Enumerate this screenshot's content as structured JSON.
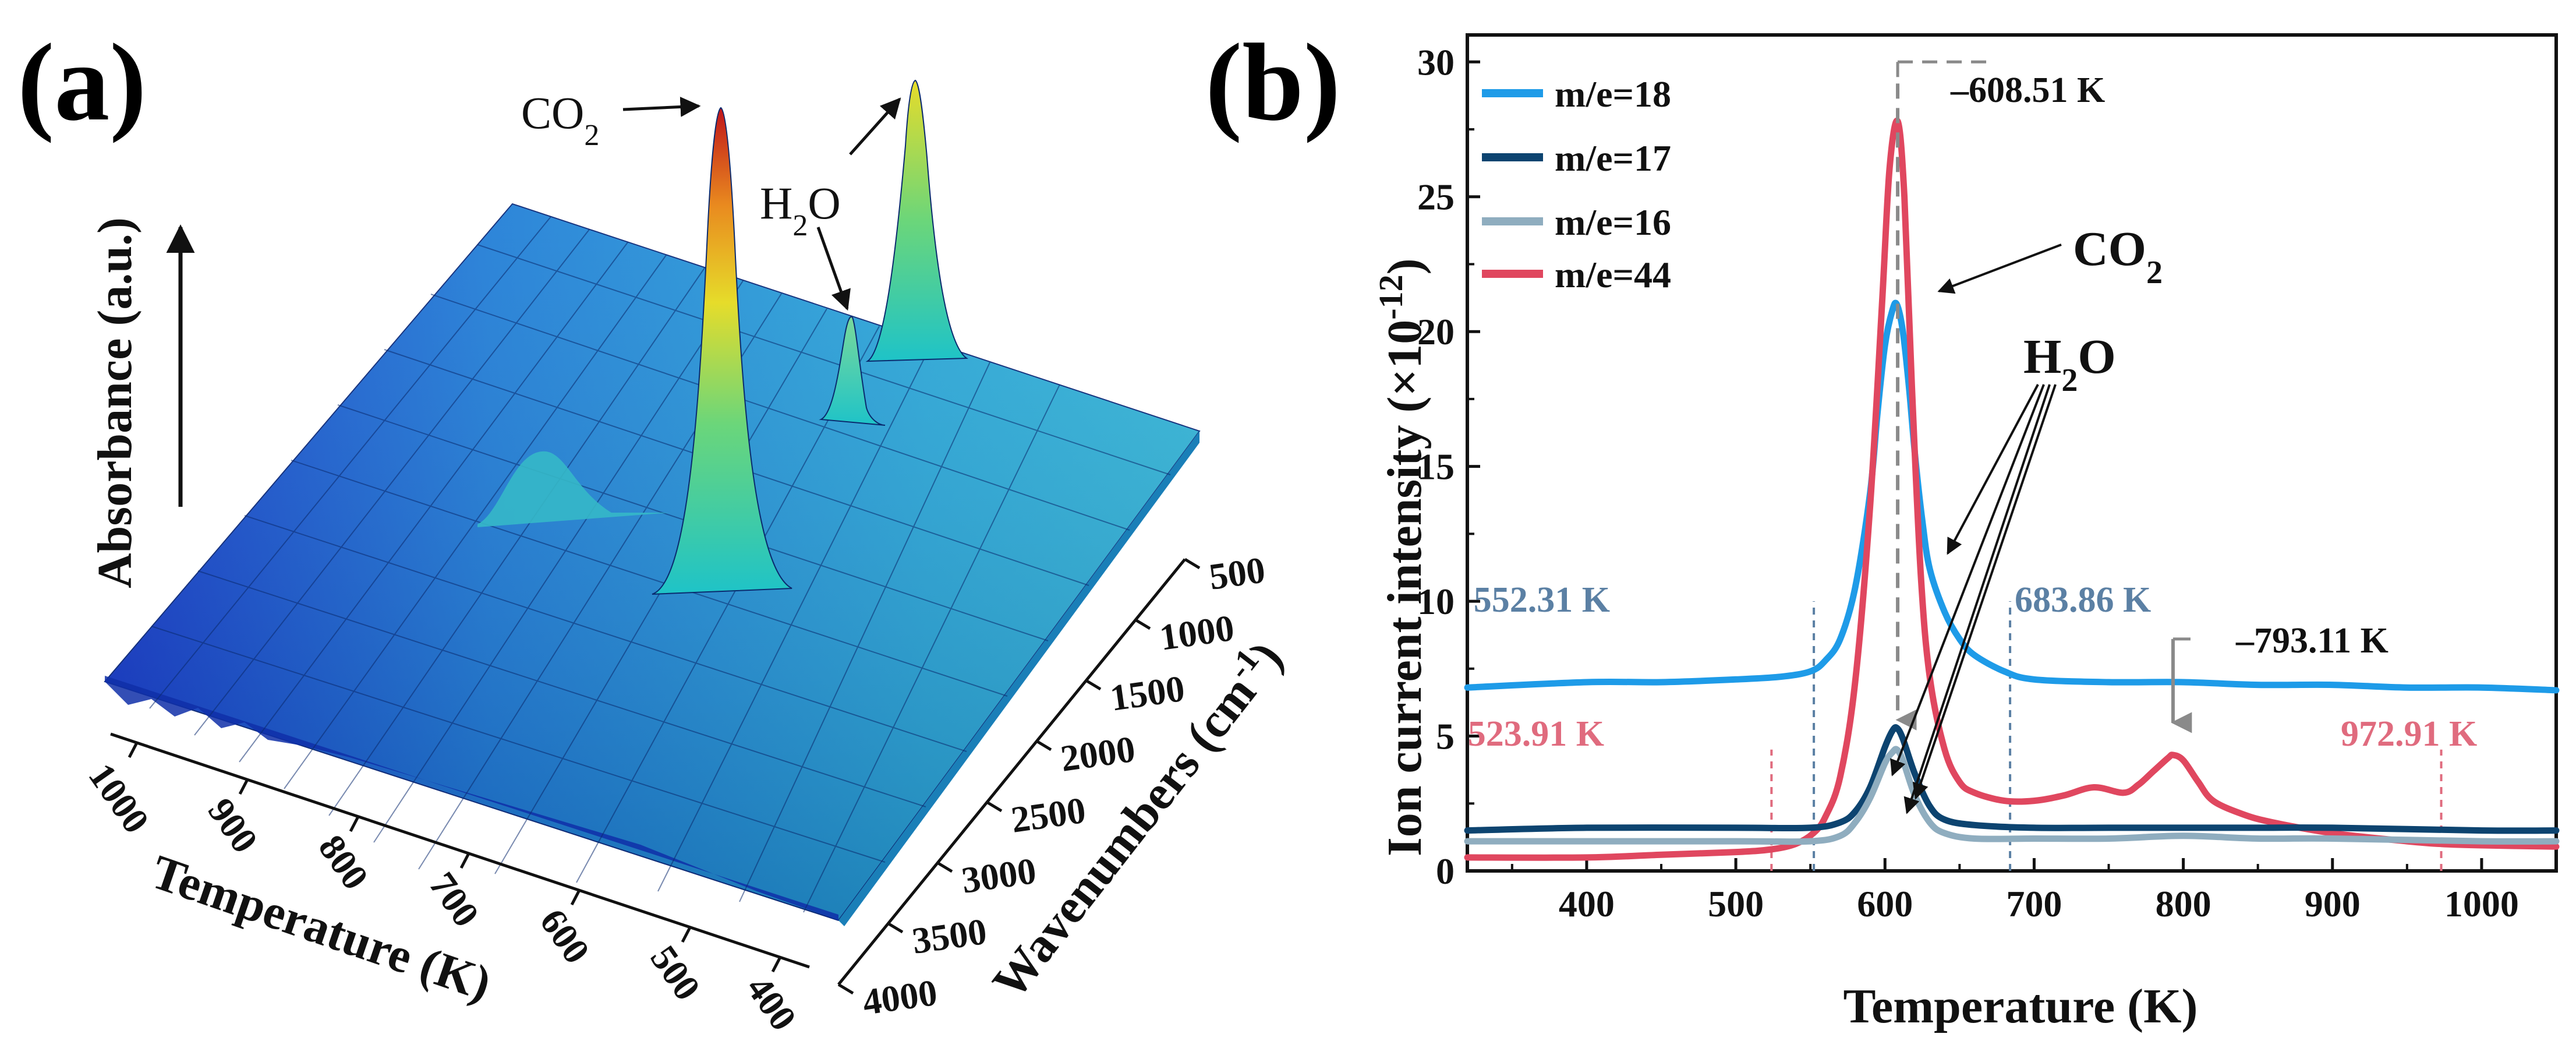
{
  "colors": {
    "m18": "#1e9be8",
    "m17": "#0d4470",
    "m16": "#8fadbf",
    "m44": "#e0475f",
    "pink_label": "#e06b7e",
    "blue_label": "#5b80a4",
    "axis": "#111111",
    "peak_marker": "#8a8a8a"
  },
  "panel_a": {
    "label": "(a)",
    "description_type": "3d-surface",
    "z_label": "Absorbance (a.u.)",
    "x_label": "Temperature (K)",
    "y_label": "Wavenumbers (cm",
    "y_label_sup": "-1",
    "y_label_close": ")",
    "temperature_ticks": [
      "1000",
      "900",
      "800",
      "700",
      "600",
      "500",
      "400"
    ],
    "wavenumber_ticks": [
      "500",
      "1000",
      "1500",
      "2000",
      "2500",
      "3000",
      "3500",
      "4000"
    ],
    "annotations": {
      "co2": "CO",
      "co2_sub": "2",
      "h2o_h": "H",
      "h2o_sub": "2",
      "h2o_o": "O"
    }
  },
  "chart_data": [
    {
      "type": "surface3d",
      "title": "(a)",
      "xlabel": "Temperature (K)",
      "ylabel": "Wavenumbers (cm-1)",
      "zlabel": "Absorbance (a.u.)",
      "x_ticks": [
        1000,
        900,
        800,
        700,
        600,
        500,
        400
      ],
      "y_ticks": [
        500,
        1000,
        1500,
        2000,
        2500,
        3000,
        3500,
        4000
      ],
      "peaks": [
        {
          "name": "CO2",
          "relative_height": 1.0
        },
        {
          "name": "CO2 (second band)",
          "relative_height": 0.94
        },
        {
          "name": "H2O",
          "relative_height": 0.33
        }
      ]
    },
    {
      "type": "line",
      "title": "(b)",
      "xlabel": "Temperature (K)",
      "ylabel": "Ion current intensity (×10-12)",
      "xlim": [
        320,
        1050
      ],
      "ylim": [
        0,
        31
      ],
      "x_ticks": [
        400,
        500,
        600,
        700,
        800,
        900,
        1000
      ],
      "y_ticks": [
        0,
        5,
        10,
        15,
        20,
        25,
        30
      ],
      "series": [
        {
          "name": "m/e=18",
          "color": "#1e9be8",
          "x": [
            320,
            400,
            450,
            500,
            530,
            550,
            560,
            570,
            580,
            590,
            595,
            600,
            605,
            608,
            612,
            616,
            620,
            625,
            630,
            640,
            650,
            660,
            680,
            700,
            750,
            800,
            850,
            900,
            950,
            1000,
            1050
          ],
          "y": [
            6.8,
            7.0,
            7.0,
            7.1,
            7.2,
            7.4,
            7.8,
            8.6,
            10.5,
            14.0,
            17.0,
            19.5,
            20.8,
            21.0,
            20.0,
            18.0,
            15.5,
            13.0,
            11.2,
            9.6,
            8.6,
            8.0,
            7.4,
            7.1,
            7.0,
            7.0,
            6.9,
            6.9,
            6.8,
            6.8,
            6.7
          ]
        },
        {
          "name": "m/e=17",
          "color": "#0d4470",
          "x": [
            320,
            400,
            500,
            550,
            570,
            580,
            590,
            600,
            605,
            608,
            612,
            620,
            630,
            640,
            660,
            700,
            750,
            800,
            850,
            900,
            1000,
            1050
          ],
          "y": [
            1.5,
            1.6,
            1.6,
            1.6,
            1.8,
            2.2,
            3.1,
            4.6,
            5.2,
            5.3,
            4.9,
            3.6,
            2.4,
            1.9,
            1.7,
            1.6,
            1.6,
            1.6,
            1.6,
            1.6,
            1.5,
            1.5
          ]
        },
        {
          "name": "m/e=16",
          "color": "#8fadbf",
          "x": [
            320,
            400,
            500,
            550,
            570,
            580,
            590,
            600,
            605,
            608,
            612,
            620,
            630,
            640,
            660,
            700,
            750,
            800,
            850,
            900,
            1000,
            1050
          ],
          "y": [
            1.1,
            1.1,
            1.1,
            1.1,
            1.3,
            1.8,
            2.7,
            4.0,
            4.4,
            4.5,
            4.1,
            2.8,
            1.8,
            1.4,
            1.2,
            1.2,
            1.2,
            1.3,
            1.2,
            1.2,
            1.1,
            1.1
          ]
        },
        {
          "name": "m/e=44",
          "color": "#e0475f",
          "x": [
            320,
            400,
            450,
            500,
            523.91,
            540,
            552,
            560,
            570,
            580,
            590,
            598,
            603,
            608.51,
            613,
            618,
            624,
            630,
            640,
            650,
            660,
            680,
            700,
            720,
            740,
            760,
            770,
            780,
            790,
            793.11,
            800,
            810,
            820,
            840,
            860,
            900,
            950,
            972.91,
            1000,
            1050
          ],
          "y": [
            0.5,
            0.5,
            0.6,
            0.7,
            0.8,
            1.0,
            1.4,
            2.0,
            3.5,
            7.0,
            13.5,
            21.0,
            26.0,
            27.8,
            25.0,
            18.0,
            11.0,
            7.2,
            4.5,
            3.3,
            2.9,
            2.6,
            2.6,
            2.8,
            3.1,
            2.9,
            3.2,
            3.7,
            4.2,
            4.3,
            4.1,
            3.3,
            2.6,
            2.1,
            1.8,
            1.4,
            1.1,
            1.0,
            0.95,
            0.9
          ]
        }
      ],
      "peak_markers": [
        {
          "x": 608.51,
          "label": "608.51 K"
        },
        {
          "x": 793.11,
          "label": "793.11 K"
        }
      ],
      "range_markers": [
        {
          "x": 552.31,
          "label": "552.31 K",
          "color": "#5b80a4"
        },
        {
          "x": 683.86,
          "label": "683.86 K",
          "color": "#5b80a4"
        },
        {
          "x": 523.91,
          "label": "523.91 K",
          "color": "#e06b7e"
        },
        {
          "x": 972.91,
          "label": "972.91 K",
          "color": "#e06b7e"
        }
      ],
      "annotations": [
        {
          "text": "CO2",
          "target": "m/e=44 peak"
        },
        {
          "text": "H2O",
          "target": "m/e=18, m/e=17, m/e=16"
        }
      ],
      "legend": "top-left"
    }
  ],
  "panel_b": {
    "label": "(b)",
    "ylabel_main": "Ion current intensity (×10",
    "ylabel_sup": "-12",
    "ylabel_close": ")",
    "xlabel": "Temperature (K)",
    "legend": [
      "m/e=18",
      "m/e=17",
      "m/e=16",
      "m/e=44"
    ],
    "co2": "CO",
    "co2_sub": "2",
    "h2o_h": "H",
    "h2o_sub": "2",
    "h2o_o": "O",
    "peak1": "608.51 K",
    "peak2": "793.11 K",
    "lbl_552": "552.31 K",
    "lbl_683": "683.86 K",
    "lbl_523": "523.91 K",
    "lbl_972": "972.91 K"
  }
}
